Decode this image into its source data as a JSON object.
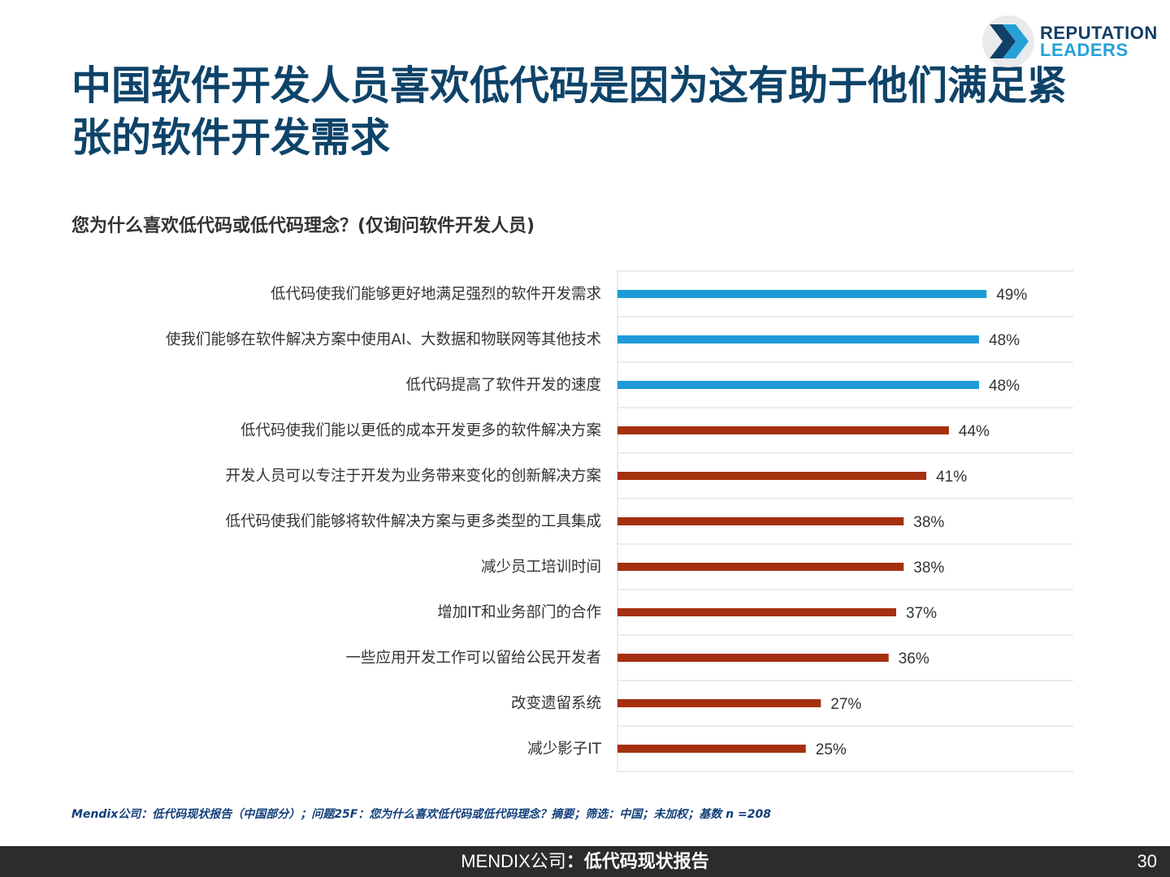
{
  "slide": {
    "title": "中国软件开发人员喜欢低代码是因为这有助于他们满足紧张的软件开发需求",
    "subtitle": "您为什么喜欢低代码或低代码理念？(仅询问软件开发人员)",
    "logo": {
      "line1": "REPUTATION",
      "line2": "LEADERS",
      "colors": {
        "dark": "#123f66",
        "light": "#27a0d8"
      }
    },
    "footnote": "Mendix公司：低代码现状报告（中国部分）；问题25F：您为什么喜欢低代码或低代码理念？摘要；筛选：中国；未加权；基数 n =208",
    "footer": {
      "brand": "MENDIX公司",
      "separator": "：",
      "report": "低代码现状报告",
      "page_number": "30"
    }
  },
  "chart_data": {
    "type": "bar",
    "orientation": "horizontal",
    "categories": [
      "低代码使我们能够更好地满足强烈的软件开发需求",
      "使我们能够在软件解决方案中使用AI、大数据和物联网等其他技术",
      "低代码提高了软件开发的速度",
      "低代码使我们能以更低的成本开发更多的软件解决方案",
      "开发人员可以专注于开发为业务带来变化的创新解决方案",
      "低代码使我们能够将软件解决方案与更多类型的工具集成",
      "减少员工培训时间",
      "增加IT和业务部门的合作",
      "一些应用开发工作可以留给公民开发者",
      "改变遗留系统",
      "减少影子IT"
    ],
    "values": [
      49,
      48,
      48,
      44,
      41,
      38,
      38,
      37,
      36,
      27,
      25
    ],
    "labels": [
      "49%",
      "48%",
      "48%",
      "44%",
      "41%",
      "38%",
      "38%",
      "37%",
      "36%",
      "27%",
      "25%"
    ],
    "bar_colors": [
      "#1e9bd7",
      "#1e9bd7",
      "#1e9bd7",
      "#a5300f",
      "#a5300f",
      "#a5300f",
      "#a5300f",
      "#a5300f",
      "#a5300f",
      "#a5300f",
      "#a5300f"
    ],
    "xlim": [
      0,
      60
    ],
    "grid": "horizontal row separators",
    "unit": "%"
  }
}
